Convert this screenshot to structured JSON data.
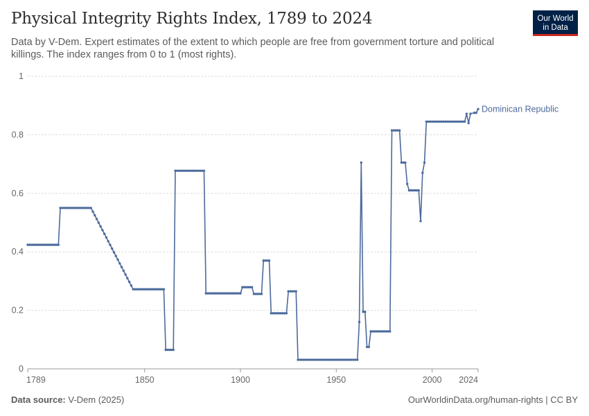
{
  "header": {
    "title": "Physical Integrity Rights Index, 1789 to 2024",
    "subtitle": "Data by V-Dem. Expert estimates of the extent to which people are free from government torture and political killings. The index ranges from 0 to 1 (most rights)."
  },
  "logo": {
    "line1": "Our World",
    "line2": "in Data"
  },
  "footer": {
    "source_label": "Data source:",
    "source_value": "V-Dem (2025)",
    "right": "OurWorldinData.org/human-rights | CC BY"
  },
  "colors": {
    "series": "#4c6a9c",
    "grid": "#dddddd",
    "axis": "#999999",
    "brand": "#002147",
    "brand_accent": "#ce261e"
  },
  "chart_data": {
    "type": "line",
    "title": "Physical Integrity Rights Index, 1789 to 2024",
    "xlabel": "",
    "ylabel": "",
    "xlim": [
      1789,
      2024
    ],
    "ylim": [
      0,
      1
    ],
    "x_ticks": [
      1789,
      1850,
      1900,
      1950,
      2000,
      2024
    ],
    "y_ticks": [
      0,
      0.2,
      0.4,
      0.6,
      0.8,
      1
    ],
    "y_tick_labels": [
      "0",
      "0.2",
      "0.4",
      "0.6",
      "0.8",
      "1"
    ],
    "grid": "horizontal dashed",
    "legend": "end-of-line label",
    "series": [
      {
        "name": "Dominican Republic",
        "color": "#4c6a9c",
        "points": [
          [
            1789,
            0.424
          ],
          [
            1805,
            0.424
          ],
          [
            1806,
            0.55
          ],
          [
            1822,
            0.55
          ],
          [
            1844,
            0.272
          ],
          [
            1860,
            0.272
          ],
          [
            1861,
            0.065
          ],
          [
            1865,
            0.065
          ],
          [
            1866,
            0.677
          ],
          [
            1881,
            0.677
          ],
          [
            1882,
            0.258
          ],
          [
            1900,
            0.258
          ],
          [
            1901,
            0.279
          ],
          [
            1906,
            0.279
          ],
          [
            1907,
            0.256
          ],
          [
            1911,
            0.256
          ],
          [
            1912,
            0.37
          ],
          [
            1915,
            0.37
          ],
          [
            1916,
            0.19
          ],
          [
            1924,
            0.19
          ],
          [
            1925,
            0.265
          ],
          [
            1929,
            0.265
          ],
          [
            1930,
            0.031
          ],
          [
            1961,
            0.031
          ],
          [
            1962,
            0.16
          ],
          [
            1963,
            0.705
          ],
          [
            1964,
            0.195
          ],
          [
            1965,
            0.195
          ],
          [
            1966,
            0.075
          ],
          [
            1967,
            0.075
          ],
          [
            1968,
            0.128
          ],
          [
            1978,
            0.128
          ],
          [
            1979,
            0.815
          ],
          [
            1983,
            0.815
          ],
          [
            1984,
            0.705
          ],
          [
            1986,
            0.705
          ],
          [
            1987,
            0.632
          ],
          [
            1988,
            0.61
          ],
          [
            1993,
            0.61
          ],
          [
            1994,
            0.505
          ],
          [
            1995,
            0.67
          ],
          [
            1996,
            0.705
          ],
          [
            1997,
            0.845
          ],
          [
            2017,
            0.845
          ],
          [
            2018,
            0.872
          ],
          [
            2019,
            0.84
          ],
          [
            2020,
            0.872
          ],
          [
            2022,
            0.875
          ],
          [
            2023,
            0.875
          ],
          [
            2024,
            0.888
          ]
        ]
      }
    ]
  }
}
